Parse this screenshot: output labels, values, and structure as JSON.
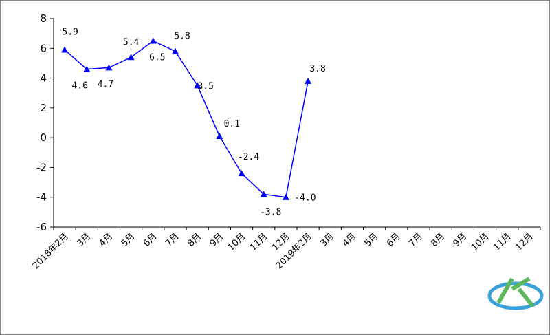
{
  "chart_data": {
    "type": "line",
    "categories": [
      "2018年2月",
      "3月",
      "4月",
      "5月",
      "6月",
      "7月",
      "8月",
      "9月",
      "10月",
      "11月",
      "12月",
      "2019年2月",
      "3月",
      "4月",
      "5月",
      "6月",
      "7月",
      "8月",
      "9月",
      "10月",
      "11月",
      "12月"
    ],
    "series": [
      {
        "name": "",
        "color": "#0000ff",
        "values": [
          5.9,
          4.6,
          4.7,
          5.4,
          6.5,
          5.8,
          3.5,
          0.1,
          -2.4,
          -3.8,
          -4.0,
          3.8,
          null,
          null,
          null,
          null,
          null,
          null,
          null,
          null,
          null,
          null
        ],
        "value_labels": [
          "5.9",
          "4.6",
          "4.7",
          "5.4",
          "6.5",
          "5.8",
          "3.5",
          "0.1",
          "-2.4",
          "-3.8",
          "-4.0",
          "3.8",
          null,
          null,
          null,
          null,
          null,
          null,
          null,
          null,
          null,
          null
        ]
      }
    ],
    "ylim": [
      -6,
      8
    ],
    "yticks": [
      -6,
      -4,
      -2,
      0,
      2,
      4,
      6,
      8
    ]
  }
}
